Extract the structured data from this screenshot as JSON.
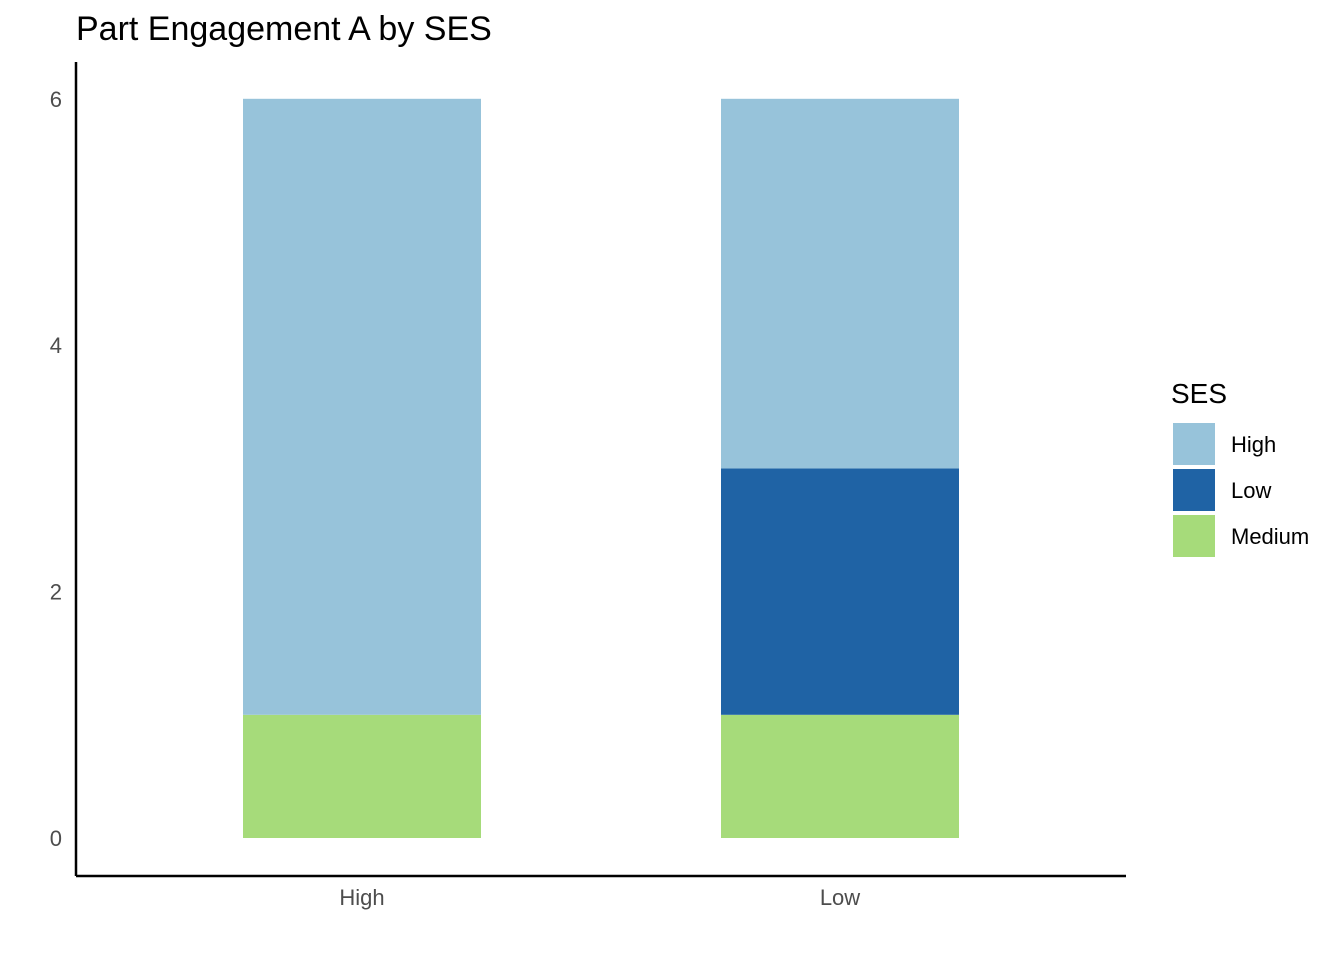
{
  "chart_data": {
    "type": "bar",
    "stacked": true,
    "title": "Part Engagement A by SES",
    "xlabel": "",
    "ylabel": "",
    "categories": [
      "High",
      "Low"
    ],
    "ylim": [
      0,
      6.3
    ],
    "yticks": [
      "0",
      "2",
      "4",
      "6"
    ],
    "grid": false,
    "legend": {
      "title": "SES",
      "position": "right"
    },
    "series": [
      {
        "name": "Medium",
        "values": [
          1,
          1
        ],
        "color": "#A6DB7A"
      },
      {
        "name": "Low",
        "values": [
          0,
          2
        ],
        "color": "#1F63A5"
      },
      {
        "name": "High",
        "values": [
          5,
          3
        ],
        "color": "#97C3DA"
      }
    ],
    "legend_order": [
      "High",
      "Low",
      "Medium"
    ]
  }
}
